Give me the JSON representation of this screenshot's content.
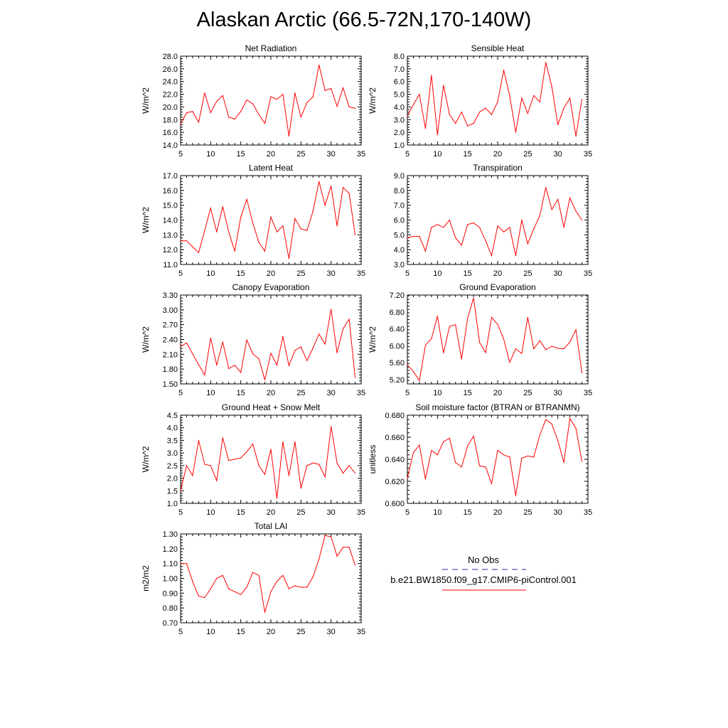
{
  "title": "Alaskan Arctic (66.5-72N,170-140W)",
  "colors": {
    "model_line": "#ff0000",
    "obs_line": "#2a2a9a",
    "axis": "#000000"
  },
  "legend": {
    "obs_label": "No Obs",
    "model_label": "b.e21.BW1850.f09_g17.CMIP6-piControl.001"
  },
  "chart_data": [
    {
      "type": "line",
      "title": "Net Radiation",
      "ylabel": "W/m^2",
      "xlim": [
        5,
        35
      ],
      "ylim": [
        14,
        28
      ],
      "xticks": [
        5,
        10,
        15,
        20,
        25,
        30,
        35
      ],
      "xtick_labels": [
        "5",
        "10",
        "15",
        "20",
        "25",
        "30",
        "35"
      ],
      "yticks": [
        14,
        16,
        18,
        20,
        22,
        24,
        26,
        28
      ],
      "ytick_labels": [
        "14.0",
        "16.0",
        "18.0",
        "20.0",
        "22.0",
        "24.0",
        "26.0",
        "28.0"
      ],
      "series": [
        {
          "x": [
            5,
            6,
            7,
            8,
            9,
            10,
            11,
            12,
            13,
            14,
            15,
            16,
            17,
            18,
            19,
            20,
            21,
            22,
            23,
            24,
            25,
            26,
            27,
            28,
            29,
            30,
            31,
            32,
            33,
            34
          ],
          "values": [
            17.3,
            19.1,
            19.3,
            17.6,
            22.2,
            19.1,
            20.9,
            21.8,
            18.4,
            18.1,
            19.3,
            21.1,
            20.5,
            18.8,
            17.4,
            21.6,
            21.2,
            22.0,
            15.4,
            22.2,
            18.4,
            20.7,
            21.6,
            26.6,
            22.6,
            22.9,
            20.1,
            23.0,
            20.0,
            19.8
          ]
        }
      ]
    },
    {
      "type": "line",
      "title": "Sensible Heat",
      "ylabel": "W/m^2",
      "xlim": [
        5,
        35
      ],
      "ylim": [
        1,
        8
      ],
      "xticks": [
        5,
        10,
        15,
        20,
        25,
        30,
        35
      ],
      "xtick_labels": [
        "5",
        "10",
        "15",
        "20",
        "25",
        "30",
        "35"
      ],
      "yticks": [
        1,
        2,
        3,
        4,
        5,
        6,
        7,
        8
      ],
      "ytick_labels": [
        "1.0",
        "2.0",
        "3.0",
        "4.0",
        "5.0",
        "6.0",
        "7.0",
        "8.0"
      ],
      "series": [
        {
          "x": [
            5,
            6,
            7,
            8,
            9,
            10,
            11,
            12,
            13,
            14,
            15,
            16,
            17,
            18,
            19,
            20,
            21,
            22,
            23,
            24,
            25,
            26,
            27,
            28,
            29,
            30,
            31,
            32,
            33,
            34
          ],
          "values": [
            3.3,
            4.2,
            5.0,
            2.3,
            6.5,
            1.8,
            5.7,
            3.4,
            2.7,
            3.6,
            2.5,
            2.7,
            3.6,
            3.9,
            3.4,
            4.4,
            6.9,
            4.9,
            2.0,
            4.7,
            3.5,
            4.9,
            4.4,
            7.5,
            5.6,
            2.6,
            3.9,
            4.7,
            1.7,
            4.6
          ]
        }
      ]
    },
    {
      "type": "line",
      "title": "Latent Heat",
      "ylabel": "W/m^2",
      "xlim": [
        5,
        35
      ],
      "ylim": [
        11,
        17
      ],
      "xticks": [
        5,
        10,
        15,
        20,
        25,
        30,
        35
      ],
      "xtick_labels": [
        "5",
        "10",
        "15",
        "20",
        "25",
        "30",
        "35"
      ],
      "yticks": [
        11,
        12,
        13,
        14,
        15,
        16,
        17
      ],
      "ytick_labels": [
        "11.0",
        "12.0",
        "13.0",
        "14.0",
        "15.0",
        "16.0",
        "17.0"
      ],
      "series": [
        {
          "x": [
            5,
            6,
            7,
            8,
            9,
            10,
            11,
            12,
            13,
            14,
            15,
            16,
            17,
            18,
            19,
            20,
            21,
            22,
            23,
            24,
            25,
            26,
            27,
            28,
            29,
            30,
            31,
            32,
            33,
            34
          ],
          "values": [
            12.6,
            12.6,
            12.2,
            11.8,
            13.3,
            14.8,
            13.2,
            14.9,
            13.2,
            11.9,
            14.2,
            15.4,
            13.8,
            12.5,
            11.9,
            14.2,
            13.2,
            13.6,
            11.4,
            14.1,
            13.4,
            13.3,
            14.6,
            16.6,
            15.0,
            16.3,
            13.6,
            16.2,
            15.8,
            13.0
          ]
        }
      ]
    },
    {
      "type": "line",
      "title": "Transpiration",
      "ylabel": "",
      "xlim": [
        5,
        35
      ],
      "ylim": [
        3,
        9
      ],
      "xticks": [
        5,
        10,
        15,
        20,
        25,
        30,
        35
      ],
      "xtick_labels": [
        "5",
        "10",
        "15",
        "20",
        "25",
        "30",
        "35"
      ],
      "yticks": [
        3,
        4,
        5,
        6,
        7,
        8,
        9
      ],
      "ytick_labels": [
        "3.0",
        "4.0",
        "5.0",
        "6.0",
        "7.0",
        "8.0",
        "9.0"
      ],
      "series": [
        {
          "x": [
            5,
            6,
            7,
            8,
            9,
            10,
            11,
            12,
            13,
            14,
            15,
            16,
            17,
            18,
            19,
            20,
            21,
            22,
            23,
            24,
            25,
            26,
            27,
            28,
            29,
            30,
            31,
            32,
            33,
            34
          ],
          "values": [
            4.8,
            4.9,
            4.9,
            3.9,
            5.5,
            5.7,
            5.5,
            6.0,
            4.8,
            4.3,
            5.7,
            5.8,
            5.5,
            4.6,
            3.6,
            5.6,
            5.2,
            5.5,
            3.6,
            6.0,
            4.4,
            5.4,
            6.3,
            8.2,
            6.7,
            7.4,
            5.5,
            7.5,
            6.6,
            6.0
          ]
        }
      ]
    },
    {
      "type": "line",
      "title": "Canopy Evaporation",
      "ylabel": "W/m^2",
      "xlim": [
        5,
        35
      ],
      "ylim": [
        1.5,
        3.3
      ],
      "xticks": [
        5,
        10,
        15,
        20,
        25,
        30,
        35
      ],
      "xtick_labels": [
        "5",
        "10",
        "15",
        "20",
        "25",
        "30",
        "35"
      ],
      "yticks": [
        1.5,
        1.8,
        2.1,
        2.4,
        2.7,
        3.0,
        3.3
      ],
      "ytick_labels": [
        "1.50",
        "1.80",
        "2.10",
        "2.40",
        "2.70",
        "3.00",
        "3.30"
      ],
      "series": [
        {
          "x": [
            5,
            6,
            7,
            8,
            9,
            10,
            11,
            12,
            13,
            14,
            15,
            16,
            17,
            18,
            19,
            20,
            21,
            22,
            23,
            24,
            25,
            26,
            27,
            28,
            29,
            30,
            31,
            32,
            33,
            34
          ],
          "values": [
            2.26,
            2.33,
            2.11,
            1.89,
            1.68,
            2.43,
            1.88,
            2.35,
            1.81,
            1.88,
            1.73,
            2.39,
            2.11,
            2.01,
            1.58,
            2.12,
            1.88,
            2.46,
            1.87,
            2.18,
            2.25,
            1.97,
            2.23,
            2.51,
            2.31,
            3.01,
            2.13,
            2.62,
            2.81,
            1.63
          ]
        }
      ]
    },
    {
      "type": "line",
      "title": "Ground Evaporation",
      "ylabel": "W/m^2",
      "xlim": [
        5,
        35
      ],
      "ylim": [
        5.1,
        7.2
      ],
      "xticks": [
        5,
        10,
        15,
        20,
        25,
        30,
        35
      ],
      "xtick_labels": [
        "5",
        "10",
        "15",
        "20",
        "25",
        "30",
        "35"
      ],
      "yticks": [
        5.2,
        5.6,
        6.0,
        6.4,
        6.8,
        7.2
      ],
      "ytick_labels": [
        "5.20",
        "5.60",
        "6.00",
        "6.40",
        "6.80",
        "7.20"
      ],
      "series": [
        {
          "x": [
            5,
            6,
            7,
            8,
            9,
            10,
            11,
            12,
            13,
            14,
            15,
            16,
            17,
            18,
            19,
            20,
            21,
            22,
            23,
            24,
            25,
            26,
            27,
            28,
            29,
            30,
            31,
            32,
            33,
            34
          ],
          "values": [
            5.55,
            5.39,
            5.18,
            6.01,
            6.17,
            6.7,
            5.83,
            6.46,
            6.5,
            5.69,
            6.65,
            7.13,
            6.08,
            5.84,
            6.67,
            6.51,
            6.16,
            5.61,
            5.93,
            5.82,
            6.67,
            5.93,
            6.12,
            5.91,
            5.99,
            5.94,
            5.93,
            6.09,
            6.38,
            5.36
          ]
        }
      ]
    },
    {
      "type": "line",
      "title": "Ground Heat + Snow Melt",
      "ylabel": "W/m^2",
      "xlim": [
        5,
        35
      ],
      "ylim": [
        1,
        4.5
      ],
      "xticks": [
        5,
        10,
        15,
        20,
        25,
        30,
        35
      ],
      "xtick_labels": [
        "5",
        "10",
        "15",
        "20",
        "25",
        "30",
        "35"
      ],
      "yticks": [
        1.0,
        1.5,
        2.0,
        2.5,
        3.0,
        3.5,
        4.0,
        4.5
      ],
      "ytick_labels": [
        "1.0",
        "1.5",
        "2.0",
        "2.5",
        "3.0",
        "3.5",
        "4.0",
        "4.5"
      ],
      "series": [
        {
          "x": [
            5,
            6,
            7,
            8,
            9,
            10,
            11,
            12,
            13,
            14,
            15,
            16,
            17,
            18,
            19,
            20,
            21,
            22,
            23,
            24,
            25,
            26,
            27,
            28,
            29,
            30,
            31,
            32,
            33,
            34
          ],
          "values": [
            1.5,
            2.5,
            2.1,
            3.5,
            2.55,
            2.5,
            1.9,
            3.6,
            2.7,
            2.75,
            2.8,
            3.05,
            3.35,
            2.5,
            2.15,
            3.15,
            1.2,
            3.45,
            2.1,
            3.45,
            1.6,
            2.5,
            2.6,
            2.55,
            2.05,
            4.05,
            2.6,
            2.2,
            2.5,
            2.2
          ]
        }
      ]
    },
    {
      "type": "line",
      "title": "Soil moisture factor (BTRAN or BTRANMN)",
      "ylabel": "unitless",
      "xlim": [
        5,
        35
      ],
      "ylim": [
        0.6,
        0.68
      ],
      "xticks": [
        5,
        10,
        15,
        20,
        25,
        30,
        35
      ],
      "xtick_labels": [
        "5",
        "10",
        "15",
        "20",
        "25",
        "30",
        "35"
      ],
      "yticks": [
        0.6,
        0.62,
        0.64,
        0.66,
        0.68
      ],
      "ytick_labels": [
        "0.600",
        "0.620",
        "0.640",
        "0.660",
        "0.680"
      ],
      "series": [
        {
          "x": [
            5,
            6,
            7,
            8,
            9,
            10,
            11,
            12,
            13,
            14,
            15,
            16,
            17,
            18,
            19,
            20,
            21,
            22,
            23,
            24,
            25,
            26,
            27,
            28,
            29,
            30,
            31,
            32,
            33,
            34
          ],
          "values": [
            0.623,
            0.646,
            0.653,
            0.622,
            0.648,
            0.644,
            0.656,
            0.659,
            0.637,
            0.633,
            0.652,
            0.661,
            0.634,
            0.633,
            0.618,
            0.648,
            0.644,
            0.642,
            0.607,
            0.641,
            0.643,
            0.642,
            0.662,
            0.676,
            0.672,
            0.657,
            0.637,
            0.677,
            0.668,
            0.638
          ]
        }
      ]
    },
    {
      "type": "line",
      "title": "Total LAI",
      "ylabel": "m2/m2",
      "xlim": [
        5,
        35
      ],
      "ylim": [
        0.7,
        1.3
      ],
      "xticks": [
        5,
        10,
        15,
        20,
        25,
        30,
        35
      ],
      "xtick_labels": [
        "5",
        "10",
        "15",
        "20",
        "25",
        "30",
        "35"
      ],
      "yticks": [
        0.7,
        0.8,
        0.9,
        1.0,
        1.1,
        1.2,
        1.3
      ],
      "ytick_labels": [
        "0.70",
        "0.80",
        "0.90",
        "1.00",
        "1.10",
        "1.20",
        "1.30"
      ],
      "series": [
        {
          "x": [
            5,
            6,
            7,
            8,
            9,
            10,
            11,
            12,
            13,
            14,
            15,
            16,
            17,
            18,
            19,
            20,
            21,
            22,
            23,
            24,
            25,
            26,
            27,
            28,
            29,
            30,
            31,
            32,
            33,
            34
          ],
          "values": [
            1.1,
            1.1,
            0.98,
            0.88,
            0.87,
            0.93,
            1.0,
            1.02,
            0.93,
            0.91,
            0.89,
            0.94,
            1.04,
            1.02,
            0.77,
            0.91,
            0.98,
            1.02,
            0.93,
            0.95,
            0.94,
            0.94,
            1.01,
            1.13,
            1.29,
            1.28,
            1.15,
            1.21,
            1.21,
            1.09
          ]
        }
      ]
    }
  ]
}
